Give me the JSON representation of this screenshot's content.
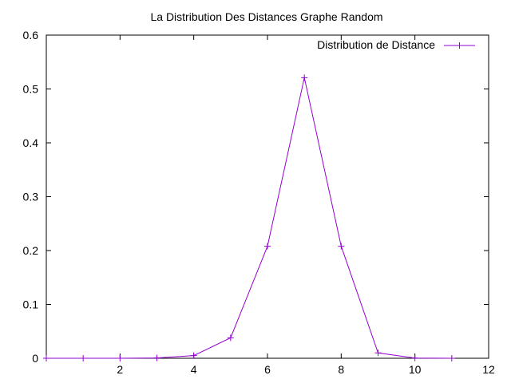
{
  "chart_data": {
    "type": "line",
    "title": "La Distribution Des Distances Graphe Random",
    "xlabel": "",
    "ylabel": "",
    "xlim": [
      0,
      12
    ],
    "ylim": [
      0,
      0.6
    ],
    "x_ticks": [
      0,
      2,
      4,
      6,
      8,
      10,
      12
    ],
    "x_tick_labels": [
      "",
      "2",
      "4",
      "6",
      "8",
      "10",
      "12"
    ],
    "y_ticks": [
      0,
      0.1,
      0.2,
      0.3,
      0.4,
      0.5,
      0.6
    ],
    "y_tick_labels": [
      "0",
      "0.1",
      "0.2",
      "0.3",
      "0.4",
      "0.5",
      "0.6"
    ],
    "grid": false,
    "legend_position": "top-right",
    "series": [
      {
        "name": "Distribution de Distance",
        "color": "#9400d3",
        "marker": "plus",
        "x": [
          0,
          1,
          2,
          3,
          4,
          5,
          6,
          7,
          8,
          9,
          10,
          11
        ],
        "y": [
          0,
          0,
          0,
          0.0005,
          0.005,
          0.038,
          0.208,
          0.521,
          0.208,
          0.01,
          0.0003,
          0
        ]
      }
    ]
  }
}
